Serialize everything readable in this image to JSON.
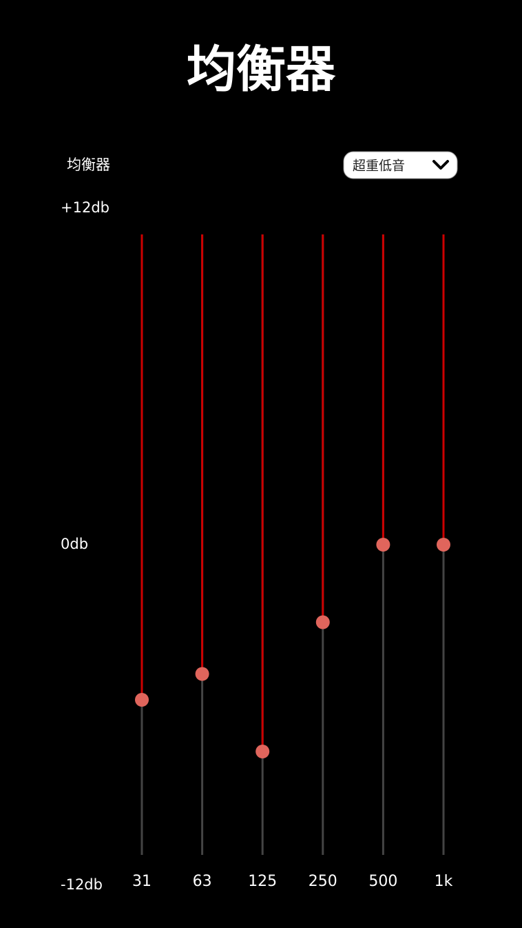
{
  "header": {
    "title": "均衡器"
  },
  "preset": {
    "label": "均衡器",
    "selected": "超重低音"
  },
  "levels": [
    {
      "value": 12,
      "label": "+12db"
    },
    {
      "value": 0,
      "label": "0db"
    },
    {
      "value": -12,
      "label": "-12db"
    }
  ],
  "bands": [
    {
      "label": "31",
      "value": -6
    },
    {
      "label": "63",
      "value": -5
    },
    {
      "label": "125",
      "value": -8
    },
    {
      "label": "250",
      "value": -3
    },
    {
      "label": "500",
      "value": 0
    },
    {
      "label": "1k",
      "value": 0
    }
  ]
}
